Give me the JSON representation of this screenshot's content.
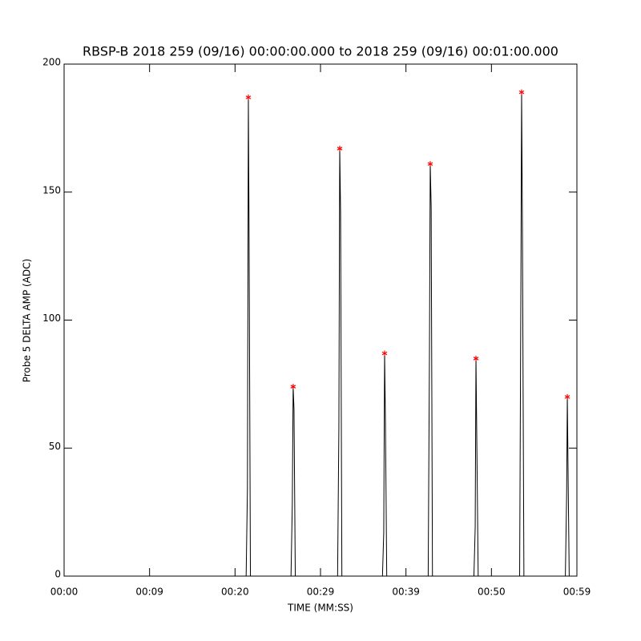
{
  "chart_data": {
    "type": "line",
    "title": "RBSP-B 2018 259 (09/16) 00:00:00.000 to 2018 259 (09/16) 00:01:00.000",
    "xlabel": "TIME (MM:SS)",
    "ylabel": "Probe 5 DELTA AMP (ADC)",
    "xlim": [
      0,
      60
    ],
    "ylim": [
      0,
      200
    ],
    "xticks": [
      {
        "value": 0,
        "label": "00:00"
      },
      {
        "value": 10,
        "label": "00:09"
      },
      {
        "value": 20,
        "label": "00:20"
      },
      {
        "value": 30,
        "label": "00:29"
      },
      {
        "value": 40,
        "label": "00:39"
      },
      {
        "value": 50,
        "label": "00:50"
      },
      {
        "value": 60,
        "label": "00:59"
      }
    ],
    "yticks": [
      0,
      50,
      100,
      150,
      200
    ],
    "grid": false,
    "series": [
      {
        "color": "#000000",
        "x": [
          0,
          21.3,
          21.45,
          21.56,
          21.65,
          21.8,
          26.55,
          26.7,
          26.8,
          26.9,
          27.05,
          32.0,
          32.15,
          32.25,
          32.35,
          32.5,
          37.25,
          37.4,
          37.5,
          37.6,
          37.75,
          42.6,
          42.75,
          42.84,
          42.95,
          43.1,
          47.95,
          48.1,
          48.19,
          48.3,
          48.45,
          53.3,
          53.45,
          53.53,
          53.63,
          53.8,
          58.65,
          58.8,
          58.88,
          58.98,
          59.1,
          60
        ],
        "values": [
          0,
          0,
          34,
          187,
          128,
          0,
          0,
          28,
          74,
          65,
          0,
          0,
          58,
          167,
          142,
          0,
          0,
          17,
          87,
          60,
          0,
          0,
          88,
          161,
          144,
          0,
          0,
          19,
          85,
          49,
          0,
          0,
          116,
          189,
          133,
          0,
          0,
          32,
          70,
          37,
          0,
          0
        ]
      },
      {
        "color": "#ff0000",
        "marker": "asterisk",
        "x": [
          21.56,
          26.8,
          32.25,
          37.5,
          42.84,
          48.19,
          53.53,
          58.88
        ],
        "values": [
          187,
          74,
          167,
          87,
          161,
          85,
          189,
          70
        ]
      }
    ]
  }
}
